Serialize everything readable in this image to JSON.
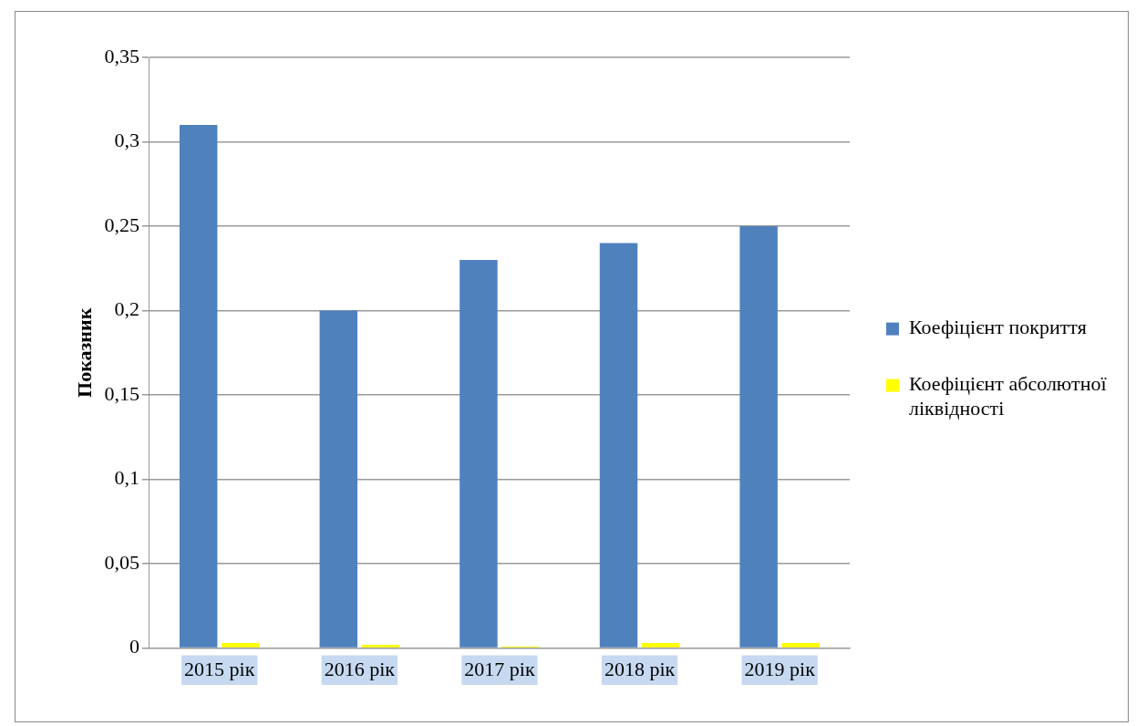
{
  "chart_data": {
    "type": "bar",
    "ylabel": "Показник",
    "categories": [
      "2015 рік",
      "2016 рік",
      "2017 рік",
      "2018 рік",
      "2019 рік"
    ],
    "series": [
      {
        "name": "Коефіцієнт покриття",
        "color": "#4f81bd",
        "values": [
          0.31,
          0.2,
          0.23,
          0.24,
          0.25
        ]
      },
      {
        "name": "Коефіцієнт абсолютної ліквідності",
        "color": "#ffff00",
        "values": [
          0.003,
          0.002,
          0.001,
          0.003,
          0.003
        ]
      }
    ],
    "ylim": [
      0,
      0.35
    ],
    "yticks": [
      {
        "value": 0,
        "label": "0"
      },
      {
        "value": 0.05,
        "label": "0,05"
      },
      {
        "value": 0.1,
        "label": "0,1"
      },
      {
        "value": 0.15,
        "label": "0,15"
      },
      {
        "value": 0.2,
        "label": "0,2"
      },
      {
        "value": 0.25,
        "label": "0,25"
      },
      {
        "value": 0.3,
        "label": "0,3"
      },
      {
        "value": 0.35,
        "label": "0,35"
      }
    ],
    "grid": "y",
    "legend": "right"
  }
}
